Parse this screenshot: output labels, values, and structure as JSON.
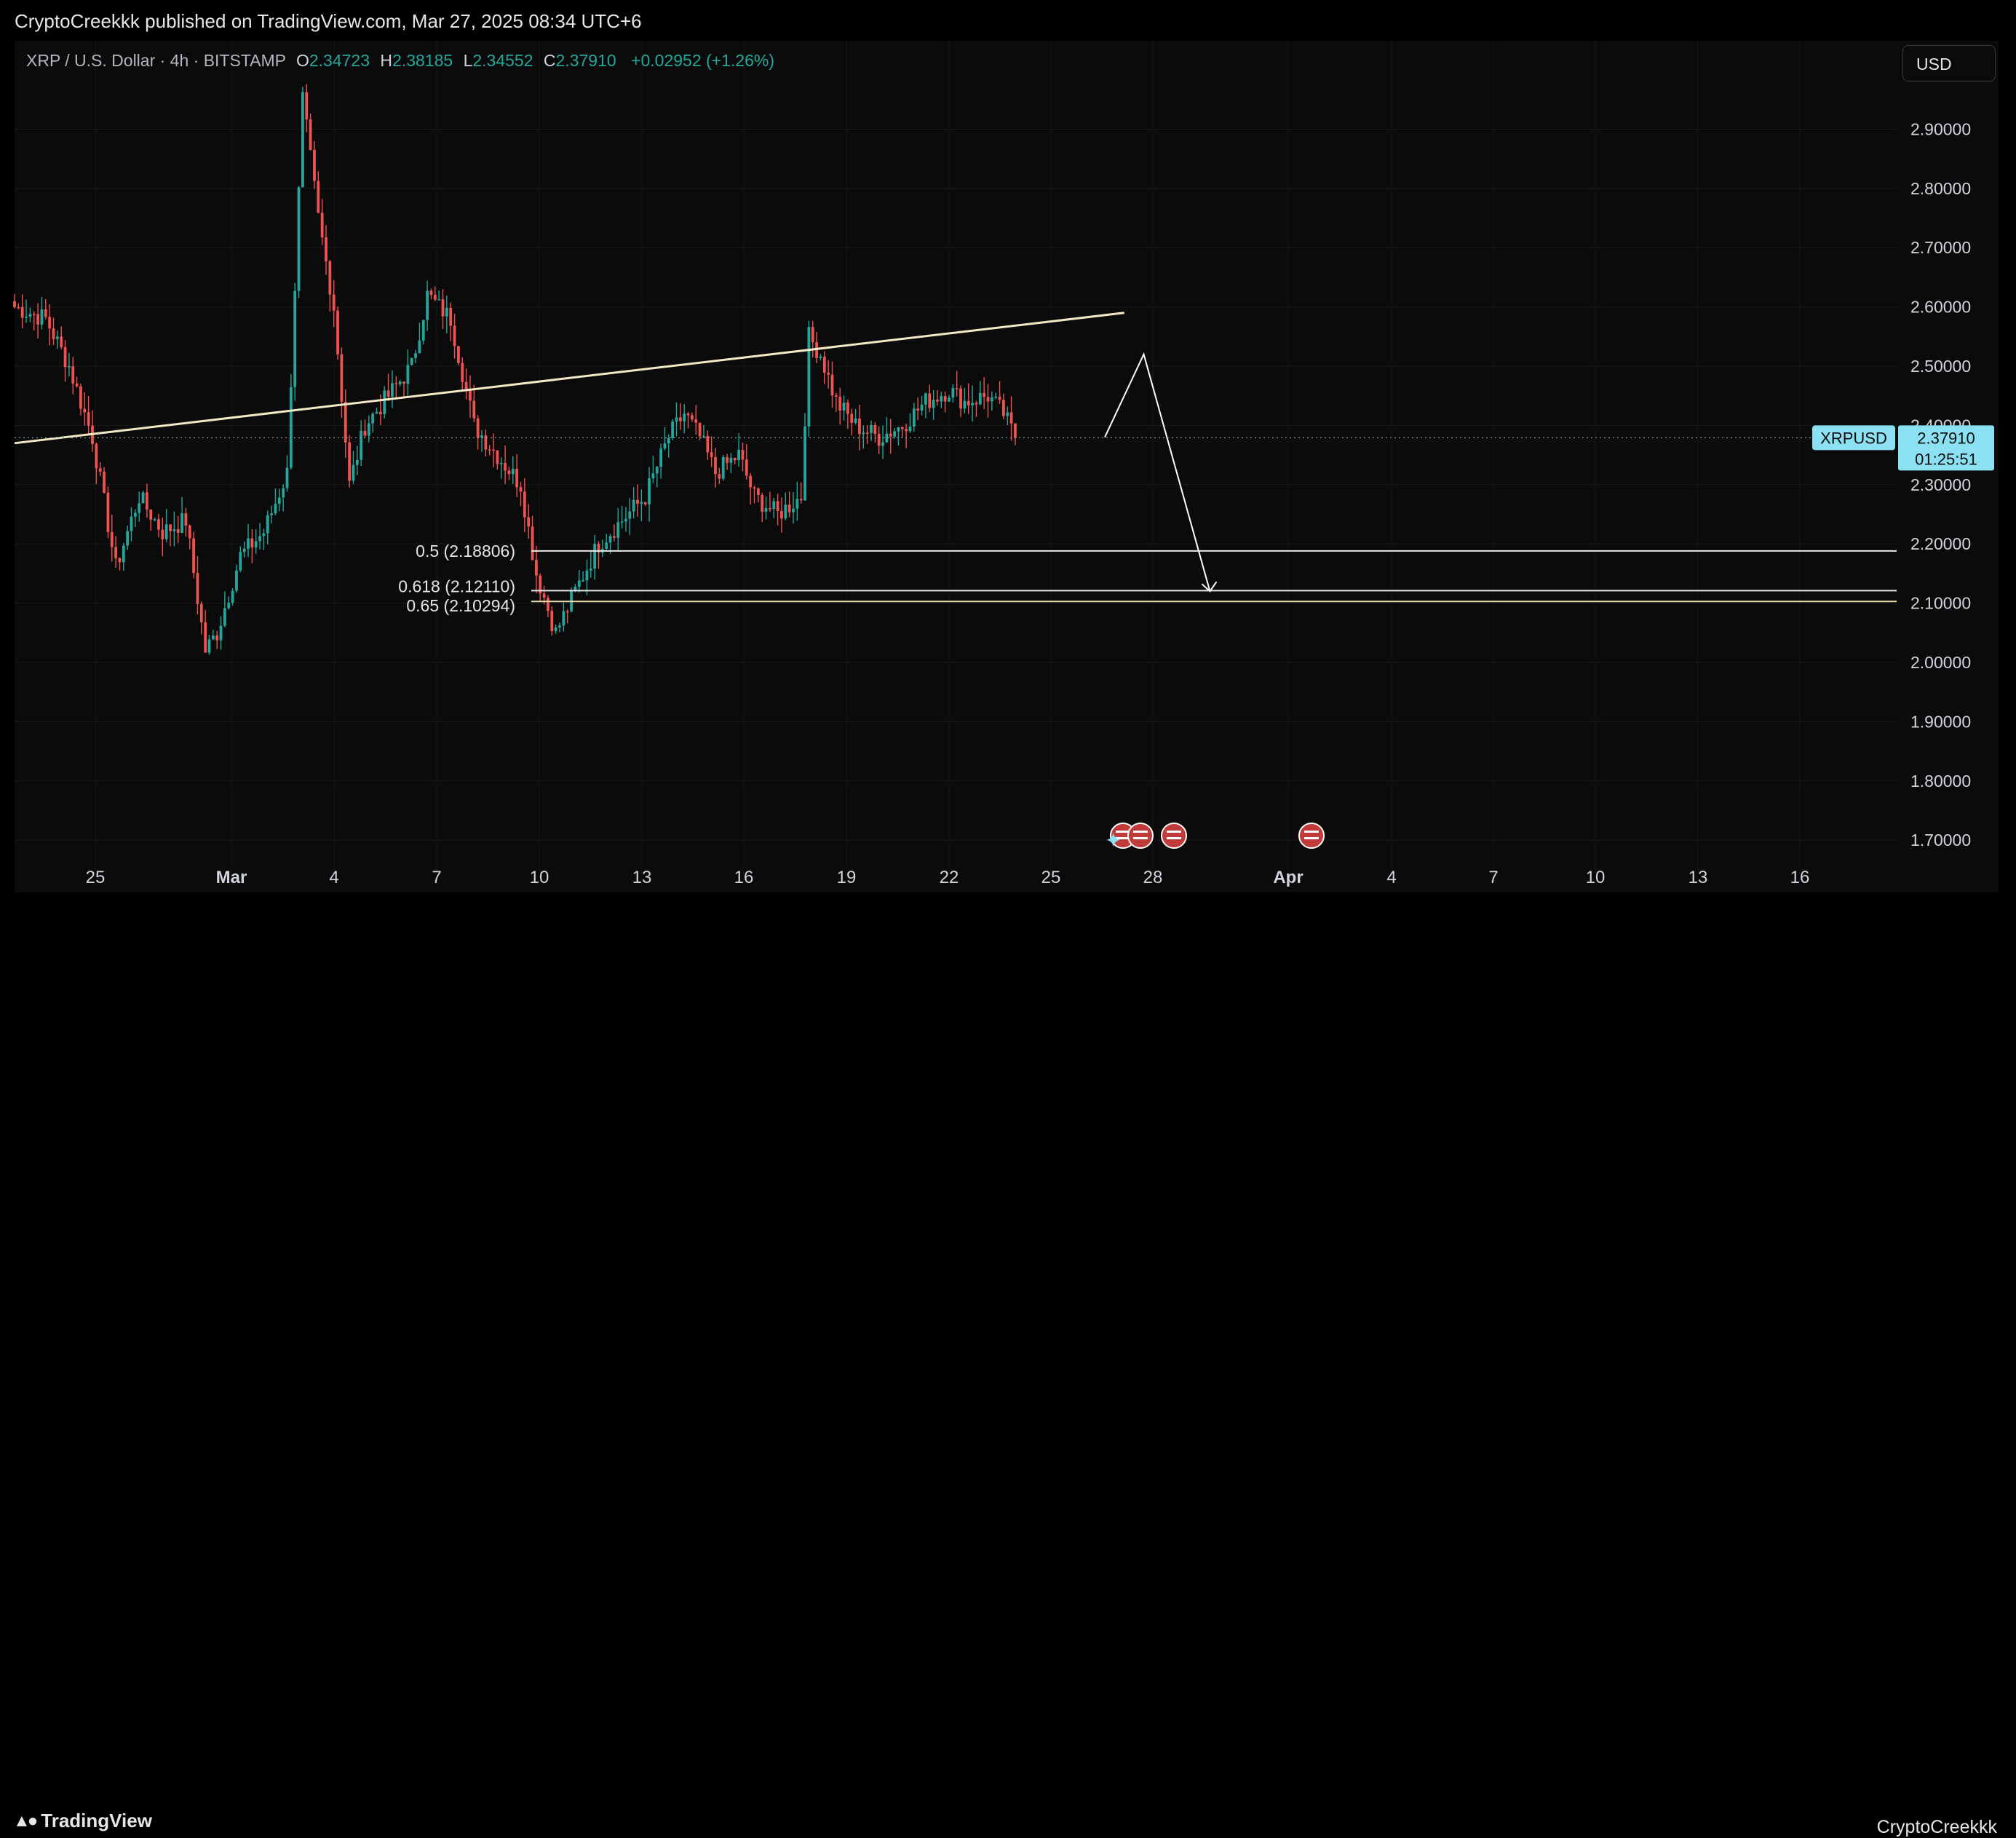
{
  "header": {
    "published_text": "CryptoCreekkk published on TradingView.com, Mar 27, 2025 08:34 UTC+6"
  },
  "legend": {
    "symbol": "XRP / U.S. Dollar · 4h · BITSTAMP",
    "open_label": "O",
    "open": "2.34723",
    "high_label": "H",
    "high": "2.38185",
    "low_label": "L",
    "low": "2.34552",
    "close_label": "C",
    "close": "2.37910",
    "change": "+0.02952 (+1.26%)"
  },
  "currency_button": {
    "label": "USD"
  },
  "colors": {
    "up": "#26a69a",
    "down": "#ef5350",
    "trendline": "#f3e9c6",
    "fib": "#e8e8e8",
    "fib_gold": "#e8d9a0",
    "price_tag": "#8be1f2"
  },
  "price_tag": {
    "symbol": "XRPUSD",
    "price": "2.37910",
    "countdown": "01:25:51"
  },
  "fib_levels": [
    {
      "label": "0.5 (2.18806)",
      "price": 2.18806
    },
    {
      "label": "0.618 (2.12110)",
      "price": 2.1211
    },
    {
      "label": "0.65 (2.10294)",
      "price": 2.10294
    }
  ],
  "footer": {
    "logo_text": "TradingView",
    "author": "CryptoCreekkk"
  },
  "chart_data": {
    "type": "candlestick",
    "interval": "4h",
    "ylim": [
      1.65,
      3.0
    ],
    "y_ticks": [
      "2.90000",
      "2.80000",
      "2.70000",
      "2.60000",
      "2.50000",
      "2.40000",
      "2.30000",
      "2.20000",
      "2.10000",
      "2.00000",
      "1.90000",
      "1.80000",
      "1.70000"
    ],
    "x_ticks": [
      "25",
      "Mar",
      "4",
      "7",
      "10",
      "13",
      "16",
      "19",
      "22",
      "25",
      "28",
      "Apr",
      "4",
      "7",
      "10",
      "13",
      "16"
    ],
    "grid": true,
    "last_price": 2.3791,
    "anchors": [
      [
        0,
        2.6
      ],
      [
        8,
        2.58
      ],
      [
        14,
        2.5
      ],
      [
        20,
        2.38
      ],
      [
        26,
        2.16
      ],
      [
        32,
        2.28
      ],
      [
        38,
        2.22
      ],
      [
        44,
        2.24
      ],
      [
        49,
        2.02
      ],
      [
        52,
        2.05
      ],
      [
        58,
        2.18
      ],
      [
        64,
        2.22
      ],
      [
        70,
        2.32
      ],
      [
        74,
        2.95
      ],
      [
        78,
        2.75
      ],
      [
        82,
        2.6
      ],
      [
        86,
        2.3
      ],
      [
        90,
        2.4
      ],
      [
        96,
        2.45
      ],
      [
        102,
        2.5
      ],
      [
        106,
        2.62
      ],
      [
        112,
        2.58
      ],
      [
        118,
        2.4
      ],
      [
        124,
        2.35
      ],
      [
        130,
        2.3
      ],
      [
        134,
        2.15
      ],
      [
        139,
        2.05
      ],
      [
        144,
        2.12
      ],
      [
        150,
        2.2
      ],
      [
        156,
        2.24
      ],
      [
        162,
        2.28
      ],
      [
        168,
        2.38
      ],
      [
        172,
        2.42
      ],
      [
        176,
        2.38
      ],
      [
        180,
        2.32
      ],
      [
        186,
        2.35
      ],
      [
        190,
        2.28
      ],
      [
        196,
        2.25
      ],
      [
        202,
        2.28
      ],
      [
        204,
        2.55
      ],
      [
        207,
        2.52
      ],
      [
        211,
        2.44
      ],
      [
        216,
        2.4
      ],
      [
        222,
        2.38
      ],
      [
        228,
        2.4
      ],
      [
        234,
        2.44
      ],
      [
        240,
        2.46
      ],
      [
        244,
        2.44
      ],
      [
        250,
        2.45
      ],
      [
        254,
        2.42
      ],
      [
        257,
        2.3791
      ]
    ],
    "annotations": {
      "trendline": [
        [
          0,
          2.37
        ],
        [
          285,
          2.59
        ]
      ],
      "projection": [
        [
          280,
          2.38
        ],
        [
          290,
          2.52
        ],
        [
          307,
          2.12
        ]
      ]
    }
  }
}
